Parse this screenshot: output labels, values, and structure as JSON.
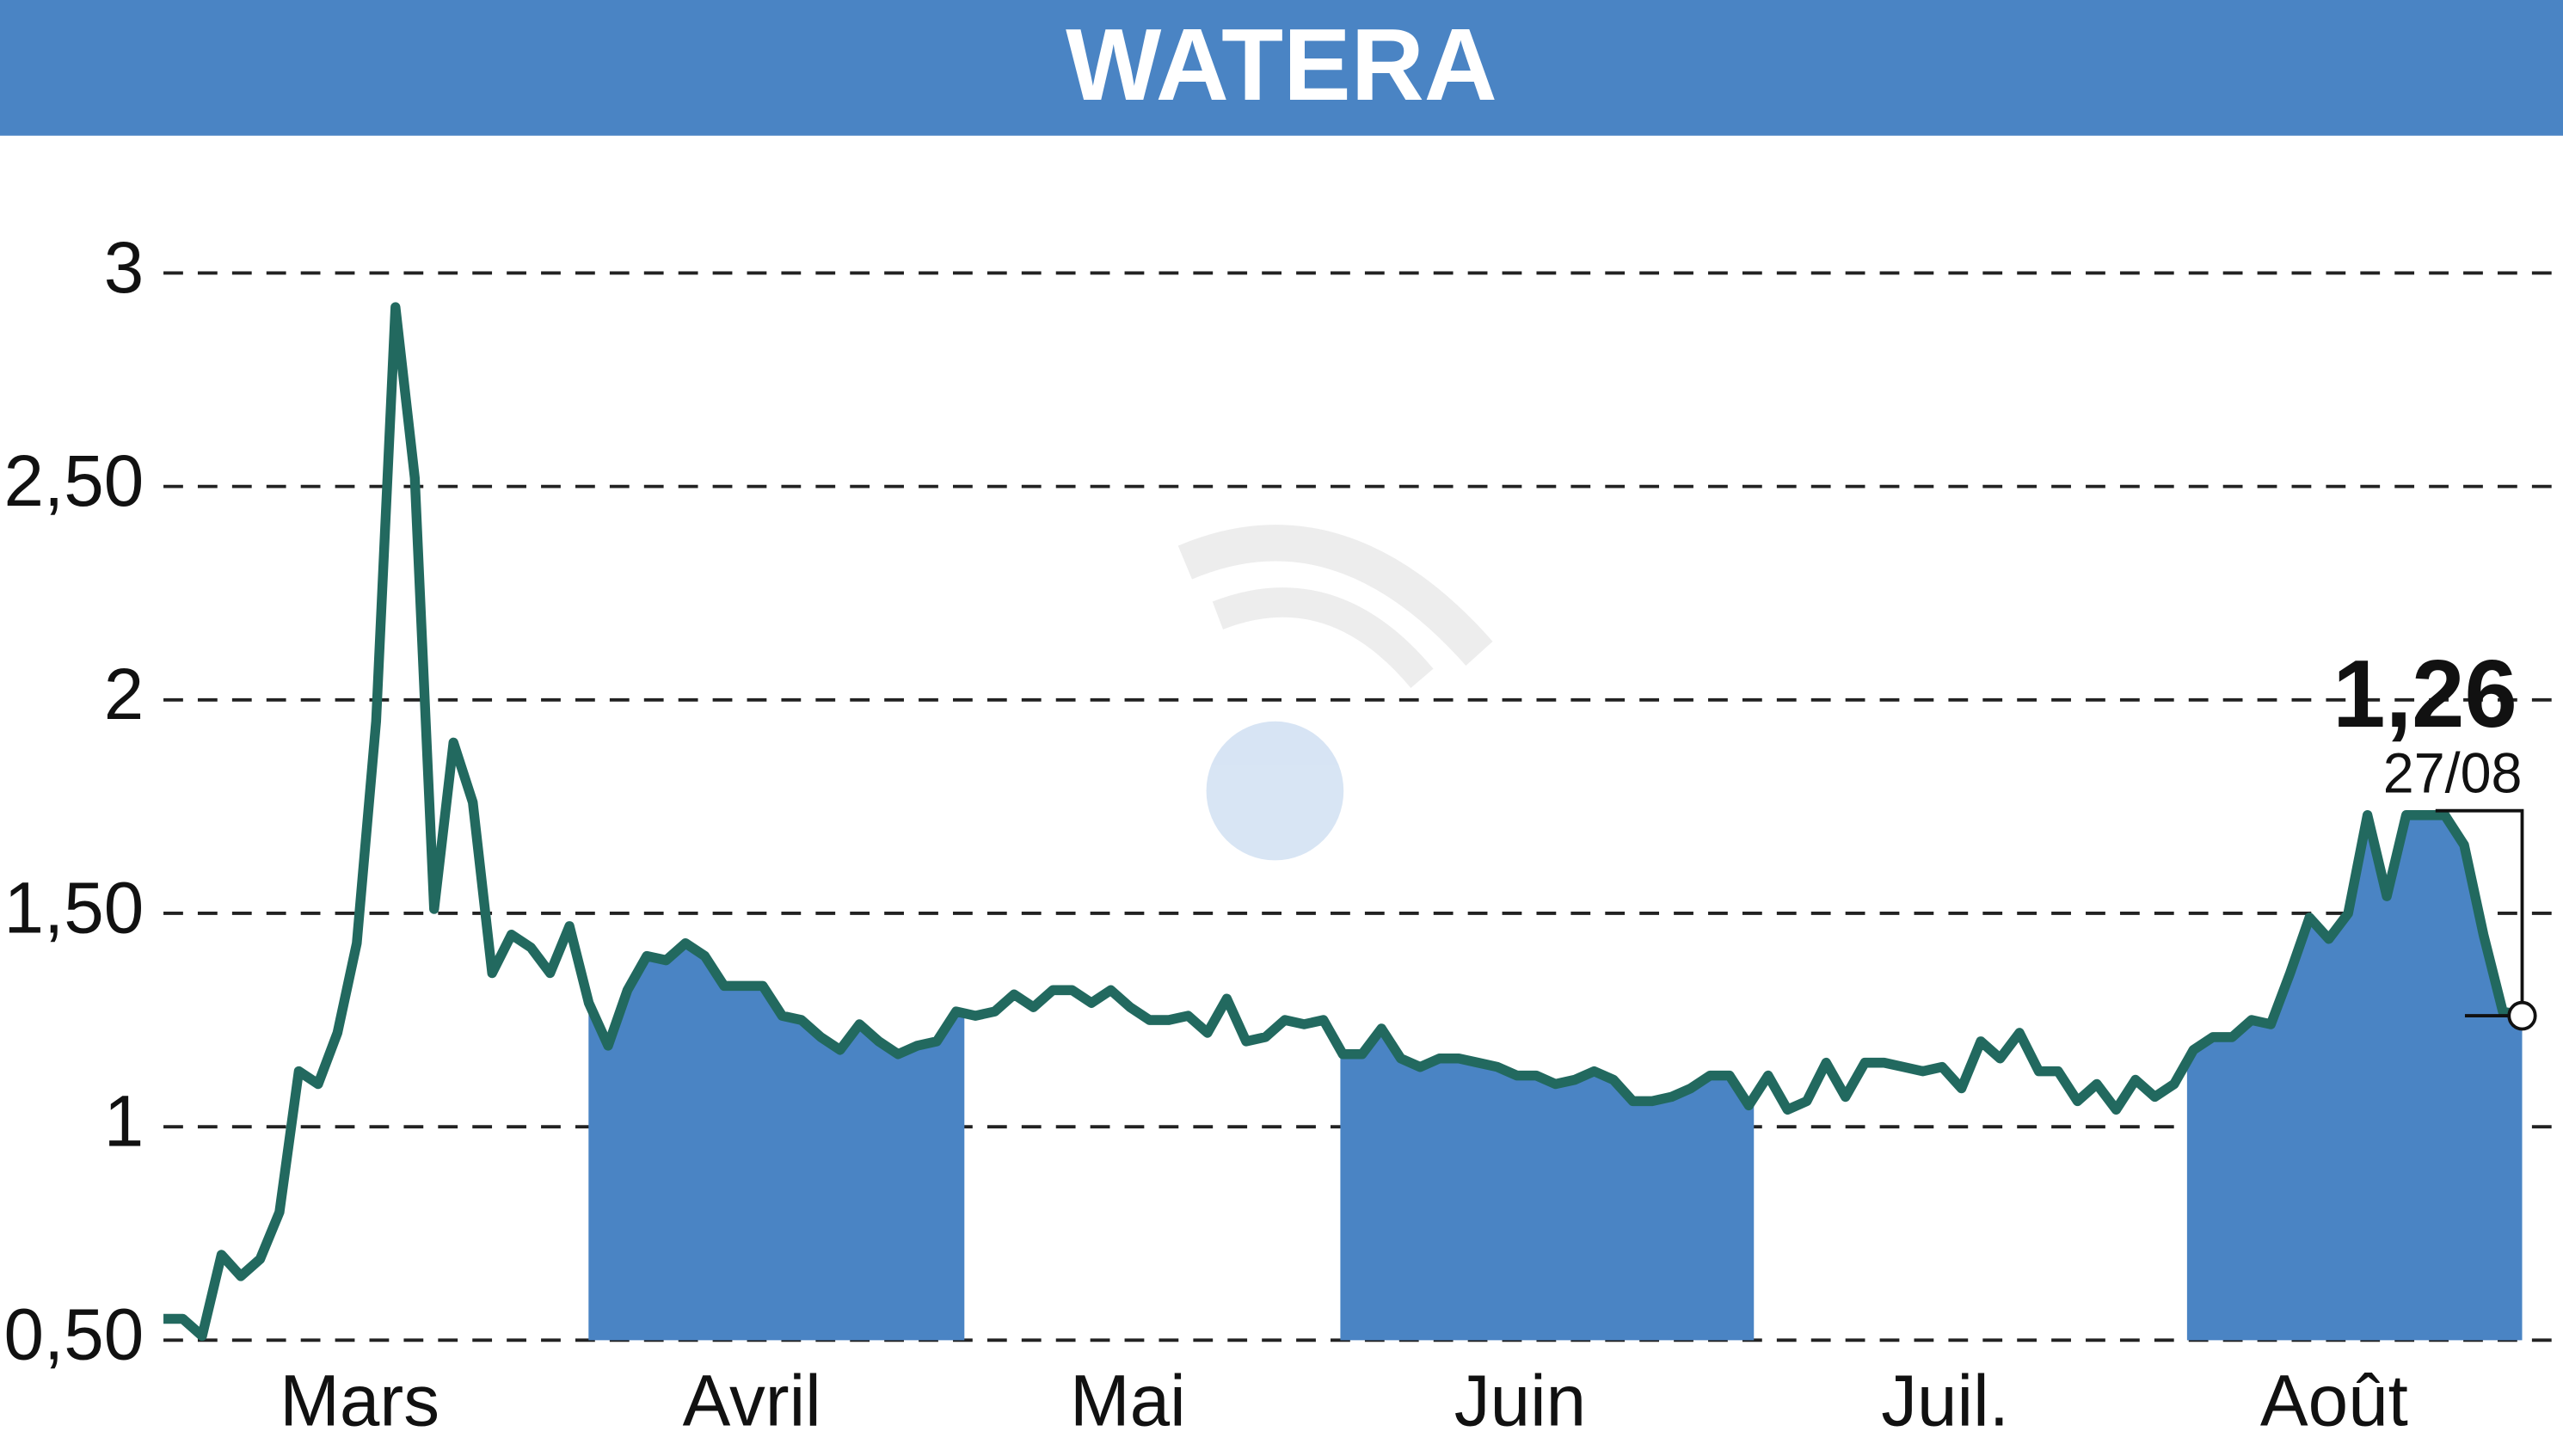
{
  "chart_data": {
    "type": "line",
    "title": "WATERA",
    "x_labels": [
      "Mars",
      "Avril",
      "Mai",
      "Juin",
      "Juil.",
      "Août"
    ],
    "series": [
      {
        "color": "#22695f",
        "fill": "#4a84c4",
        "values": [
          0.55,
          0.55,
          0.51,
          0.7,
          0.65,
          0.69,
          0.8,
          1.13,
          1.1,
          1.22,
          1.43,
          1.95,
          2.92,
          2.52,
          1.51,
          1.9,
          1.76,
          1.36,
          1.45,
          1.42,
          1.36,
          1.47,
          1.29,
          1.19,
          1.32,
          1.4,
          1.39,
          1.43,
          1.4,
          1.33,
          1.33,
          1.33,
          1.26,
          1.25,
          1.21,
          1.18,
          1.24,
          1.2,
          1.17,
          1.19,
          1.2,
          1.27,
          1.26,
          1.27,
          1.31,
          1.28,
          1.32,
          1.32,
          1.29,
          1.32,
          1.28,
          1.25,
          1.25,
          1.26,
          1.22,
          1.3,
          1.2,
          1.21,
          1.25,
          1.24,
          1.25,
          1.17,
          1.17,
          1.23,
          1.16,
          1.14,
          1.16,
          1.16,
          1.15,
          1.14,
          1.12,
          1.12,
          1.1,
          1.11,
          1.13,
          1.11,
          1.06,
          1.06,
          1.07,
          1.09,
          1.12,
          1.12,
          1.05,
          1.12,
          1.04,
          1.06,
          1.15,
          1.07,
          1.15,
          1.15,
          1.14,
          1.13,
          1.14,
          1.09,
          1.2,
          1.16,
          1.22,
          1.13,
          1.13,
          1.06,
          1.1,
          1.04,
          1.11,
          1.07,
          1.1,
          1.18,
          1.21,
          1.21,
          1.25,
          1.24,
          1.36,
          1.49,
          1.44,
          1.5,
          1.73,
          1.54,
          1.73,
          1.73,
          1.73,
          1.66,
          1.45,
          1.27,
          1.26
        ]
      }
    ],
    "ylim": [
      0.5,
      3
    ],
    "yticks": [
      {
        "value": 0.5,
        "label": "0,50"
      },
      1,
      {
        "value": 1.5,
        "label": "1,50"
      },
      2,
      {
        "value": 2.5,
        "label": "2,50"
      },
      3
    ],
    "grid": true,
    "last_value": {
      "value": 1.26,
      "label": "1,26"
    },
    "last_date": "27/08"
  }
}
